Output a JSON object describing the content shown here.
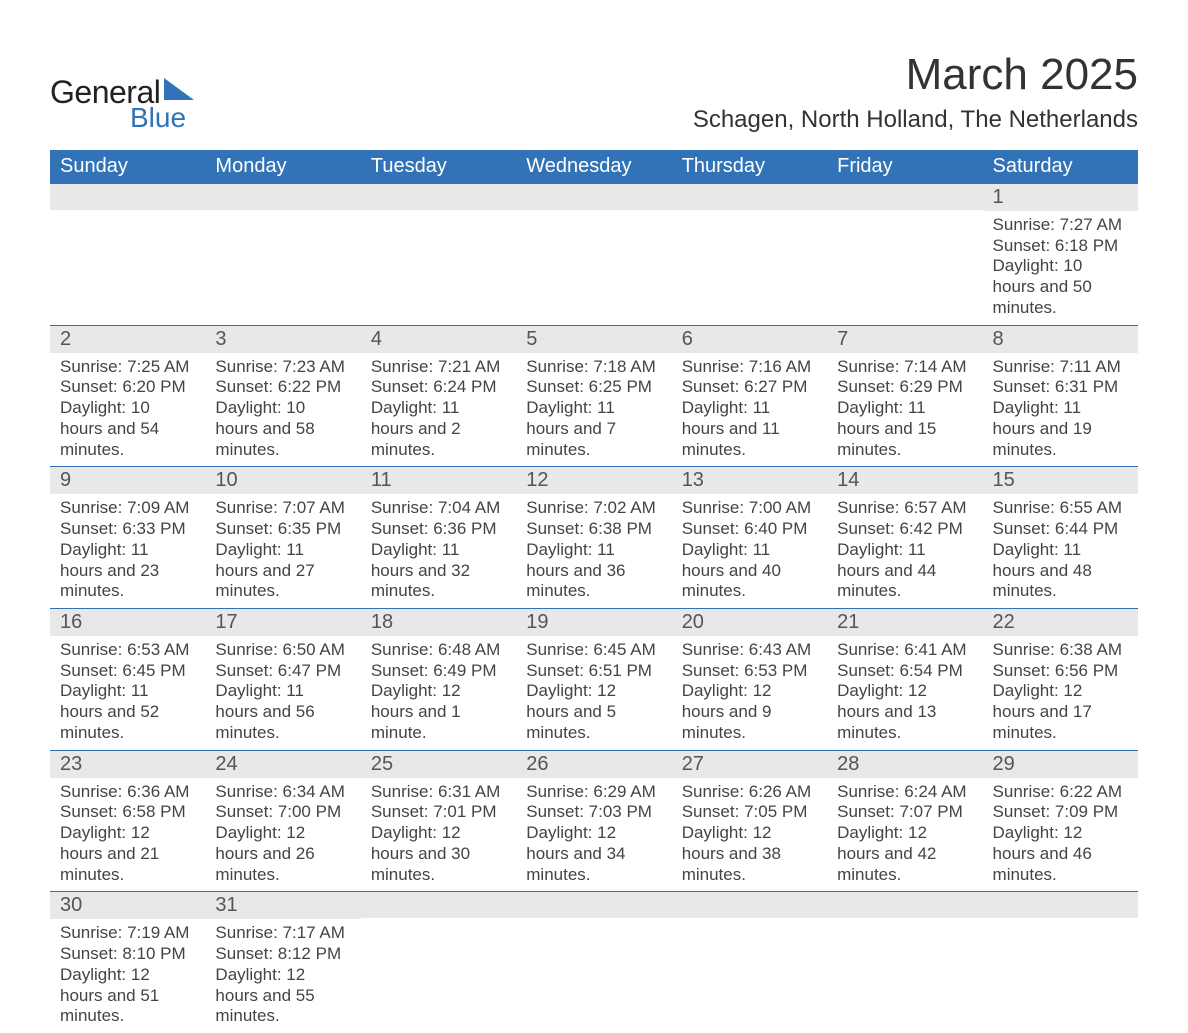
{
  "logo": {
    "text_top": "General",
    "text_bottom": "Blue",
    "triangle_color": "#3273b8"
  },
  "title": "March 2025",
  "location": "Schagen, North Holland, The Netherlands",
  "colors": {
    "header_bg": "#3273b8",
    "header_text": "#ffffff",
    "daynum_bg": "#e8e8e8",
    "body_text": "#444444",
    "row_border": "#3273b8",
    "page_bg": "#ffffff"
  },
  "typography": {
    "title_fontsize": 44,
    "location_fontsize": 24,
    "dayheader_fontsize": 20,
    "daynum_fontsize": 20,
    "body_fontsize": 17
  },
  "day_headers": [
    "Sunday",
    "Monday",
    "Tuesday",
    "Wednesday",
    "Thursday",
    "Friday",
    "Saturday"
  ],
  "weeks": [
    [
      null,
      null,
      null,
      null,
      null,
      null,
      {
        "n": "1",
        "sunrise": "7:27 AM",
        "sunset": "6:18 PM",
        "daylight": "10 hours and 50 minutes."
      }
    ],
    [
      {
        "n": "2",
        "sunrise": "7:25 AM",
        "sunset": "6:20 PM",
        "daylight": "10 hours and 54 minutes."
      },
      {
        "n": "3",
        "sunrise": "7:23 AM",
        "sunset": "6:22 PM",
        "daylight": "10 hours and 58 minutes."
      },
      {
        "n": "4",
        "sunrise": "7:21 AM",
        "sunset": "6:24 PM",
        "daylight": "11 hours and 2 minutes."
      },
      {
        "n": "5",
        "sunrise": "7:18 AM",
        "sunset": "6:25 PM",
        "daylight": "11 hours and 7 minutes."
      },
      {
        "n": "6",
        "sunrise": "7:16 AM",
        "sunset": "6:27 PM",
        "daylight": "11 hours and 11 minutes."
      },
      {
        "n": "7",
        "sunrise": "7:14 AM",
        "sunset": "6:29 PM",
        "daylight": "11 hours and 15 minutes."
      },
      {
        "n": "8",
        "sunrise": "7:11 AM",
        "sunset": "6:31 PM",
        "daylight": "11 hours and 19 minutes."
      }
    ],
    [
      {
        "n": "9",
        "sunrise": "7:09 AM",
        "sunset": "6:33 PM",
        "daylight": "11 hours and 23 minutes."
      },
      {
        "n": "10",
        "sunrise": "7:07 AM",
        "sunset": "6:35 PM",
        "daylight": "11 hours and 27 minutes."
      },
      {
        "n": "11",
        "sunrise": "7:04 AM",
        "sunset": "6:36 PM",
        "daylight": "11 hours and 32 minutes."
      },
      {
        "n": "12",
        "sunrise": "7:02 AM",
        "sunset": "6:38 PM",
        "daylight": "11 hours and 36 minutes."
      },
      {
        "n": "13",
        "sunrise": "7:00 AM",
        "sunset": "6:40 PM",
        "daylight": "11 hours and 40 minutes."
      },
      {
        "n": "14",
        "sunrise": "6:57 AM",
        "sunset": "6:42 PM",
        "daylight": "11 hours and 44 minutes."
      },
      {
        "n": "15",
        "sunrise": "6:55 AM",
        "sunset": "6:44 PM",
        "daylight": "11 hours and 48 minutes."
      }
    ],
    [
      {
        "n": "16",
        "sunrise": "6:53 AM",
        "sunset": "6:45 PM",
        "daylight": "11 hours and 52 minutes."
      },
      {
        "n": "17",
        "sunrise": "6:50 AM",
        "sunset": "6:47 PM",
        "daylight": "11 hours and 56 minutes."
      },
      {
        "n": "18",
        "sunrise": "6:48 AM",
        "sunset": "6:49 PM",
        "daylight": "12 hours and 1 minute."
      },
      {
        "n": "19",
        "sunrise": "6:45 AM",
        "sunset": "6:51 PM",
        "daylight": "12 hours and 5 minutes."
      },
      {
        "n": "20",
        "sunrise": "6:43 AM",
        "sunset": "6:53 PM",
        "daylight": "12 hours and 9 minutes."
      },
      {
        "n": "21",
        "sunrise": "6:41 AM",
        "sunset": "6:54 PM",
        "daylight": "12 hours and 13 minutes."
      },
      {
        "n": "22",
        "sunrise": "6:38 AM",
        "sunset": "6:56 PM",
        "daylight": "12 hours and 17 minutes."
      }
    ],
    [
      {
        "n": "23",
        "sunrise": "6:36 AM",
        "sunset": "6:58 PM",
        "daylight": "12 hours and 21 minutes."
      },
      {
        "n": "24",
        "sunrise": "6:34 AM",
        "sunset": "7:00 PM",
        "daylight": "12 hours and 26 minutes."
      },
      {
        "n": "25",
        "sunrise": "6:31 AM",
        "sunset": "7:01 PM",
        "daylight": "12 hours and 30 minutes."
      },
      {
        "n": "26",
        "sunrise": "6:29 AM",
        "sunset": "7:03 PM",
        "daylight": "12 hours and 34 minutes."
      },
      {
        "n": "27",
        "sunrise": "6:26 AM",
        "sunset": "7:05 PM",
        "daylight": "12 hours and 38 minutes."
      },
      {
        "n": "28",
        "sunrise": "6:24 AM",
        "sunset": "7:07 PM",
        "daylight": "12 hours and 42 minutes."
      },
      {
        "n": "29",
        "sunrise": "6:22 AM",
        "sunset": "7:09 PM",
        "daylight": "12 hours and 46 minutes."
      }
    ],
    [
      {
        "n": "30",
        "sunrise": "7:19 AM",
        "sunset": "8:10 PM",
        "daylight": "12 hours and 51 minutes."
      },
      {
        "n": "31",
        "sunrise": "7:17 AM",
        "sunset": "8:12 PM",
        "daylight": "12 hours and 55 minutes."
      },
      null,
      null,
      null,
      null,
      null
    ]
  ],
  "labels": {
    "sunrise": "Sunrise: ",
    "sunset": "Sunset: ",
    "daylight": "Daylight: "
  }
}
